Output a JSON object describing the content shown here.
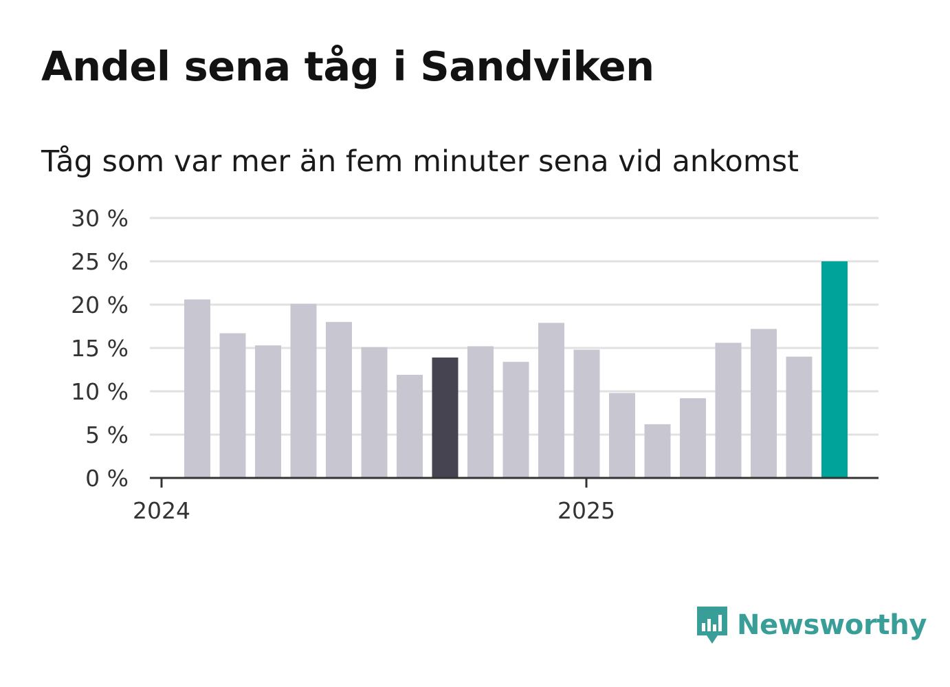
{
  "title": "Andel sena tåg i Sandviken",
  "subtitle": "Tåg som var mer än fem minuter sena vid ankomst",
  "brand": {
    "name": "Newsworthy",
    "color": "#3a9e98"
  },
  "colors": {
    "default_bar": "#c8c7d1",
    "highlight_previous": "#454450",
    "highlight_latest": "#00a399",
    "grid": "#e1e1e1",
    "axis": "#333333"
  },
  "chart_data": {
    "type": "bar",
    "title": "Andel sena tåg i Sandviken",
    "subtitle": "Tåg som var mer än fem minuter sena vid ankomst",
    "x": [
      "2024-01",
      "2024-02",
      "2024-03",
      "2024-04",
      "2024-05",
      "2024-06",
      "2024-07",
      "2024-08",
      "2024-09",
      "2024-10",
      "2024-11",
      "2024-12",
      "2025-01",
      "2025-02",
      "2025-03",
      "2025-04",
      "2025-05",
      "2025-06",
      "2025-07"
    ],
    "values": [
      20.6,
      16.7,
      15.3,
      20.1,
      18.0,
      15.1,
      11.9,
      13.9,
      15.2,
      13.4,
      17.9,
      14.8,
      9.8,
      6.2,
      9.2,
      15.6,
      17.2,
      14.0,
      25.0
    ],
    "highlight": {
      "2024-08": "dark",
      "2025-07": "teal"
    },
    "x_ticks": [
      "2024",
      "2025"
    ],
    "y_ticks": [
      "0 %",
      "5 %",
      "10 %",
      "15 %",
      "20 %",
      "25 %",
      "30 %"
    ],
    "ylim": [
      0,
      30
    ],
    "grid": true,
    "xlabel": "",
    "ylabel": ""
  }
}
